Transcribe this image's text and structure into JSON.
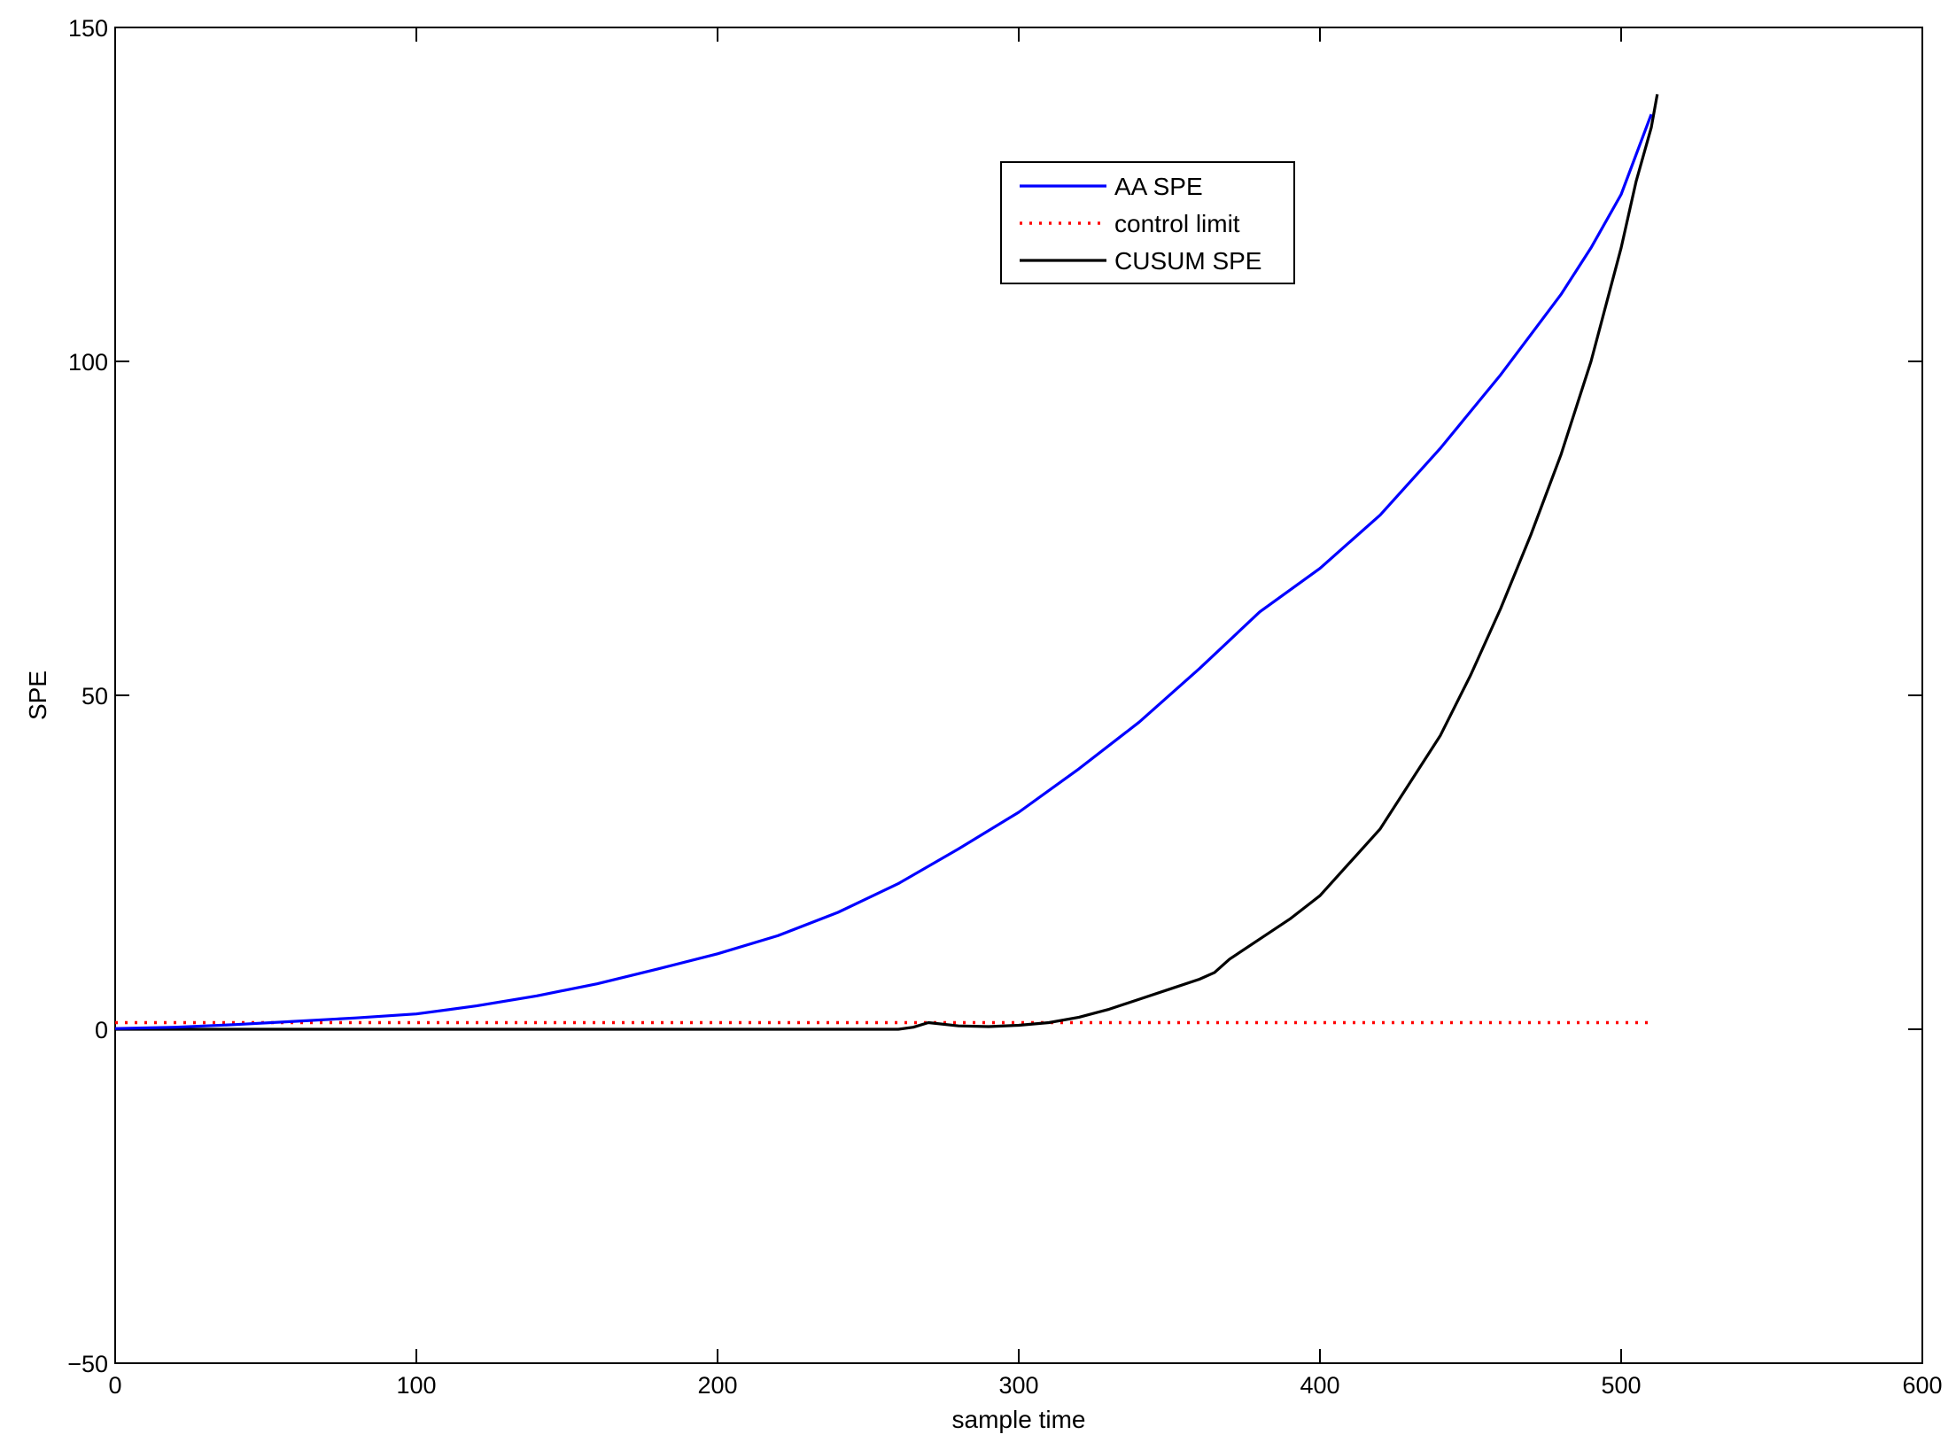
{
  "chart_data": {
    "type": "line",
    "title": "",
    "xlabel": "sample time",
    "ylabel": "SPE",
    "xlim": [
      0,
      600
    ],
    "ylim": [
      -50,
      150
    ],
    "xticks": [
      0,
      100,
      200,
      300,
      400,
      500,
      600
    ],
    "yticks": [
      -50,
      0,
      50,
      100,
      150
    ],
    "grid": false,
    "legend_position": "top-center",
    "series": [
      {
        "name": "AA SPE",
        "color": "#0000ff",
        "style": "solid",
        "x": [
          0,
          20,
          40,
          60,
          80,
          100,
          120,
          140,
          160,
          180,
          200,
          220,
          240,
          260,
          280,
          300,
          320,
          340,
          360,
          380,
          400,
          420,
          440,
          460,
          480,
          490,
          500,
          505,
          510
        ],
        "y": [
          0.1,
          0.3,
          0.7,
          1.2,
          1.7,
          2.3,
          3.5,
          5,
          6.8,
          9,
          11.3,
          14,
          17.5,
          21.8,
          27,
          32.5,
          39,
          46,
          54,
          62.5,
          69,
          77,
          87,
          98,
          110,
          117,
          125,
          131,
          137
        ]
      },
      {
        "name": "control limit",
        "color": "#ff0000",
        "style": "dotted",
        "x": [
          0,
          510
        ],
        "y": [
          1,
          1
        ]
      },
      {
        "name": "CUSUM SPE",
        "color": "#000000",
        "style": "solid",
        "x": [
          0,
          100,
          150,
          200,
          250,
          260,
          265,
          270,
          280,
          290,
          300,
          310,
          320,
          330,
          340,
          350,
          360,
          365,
          370,
          380,
          390,
          400,
          410,
          420,
          430,
          440,
          450,
          460,
          470,
          480,
          490,
          500,
          505,
          510,
          512
        ],
        "y": [
          0,
          0,
          0,
          0,
          0,
          0,
          0.3,
          1,
          0.5,
          0.4,
          0.6,
          1,
          1.8,
          3,
          4.5,
          6,
          7.5,
          8.5,
          10.5,
          13.5,
          16.5,
          20,
          25,
          30,
          37,
          44,
          53,
          63,
          74,
          86,
          100,
          117,
          127,
          135,
          140
        ]
      }
    ]
  }
}
